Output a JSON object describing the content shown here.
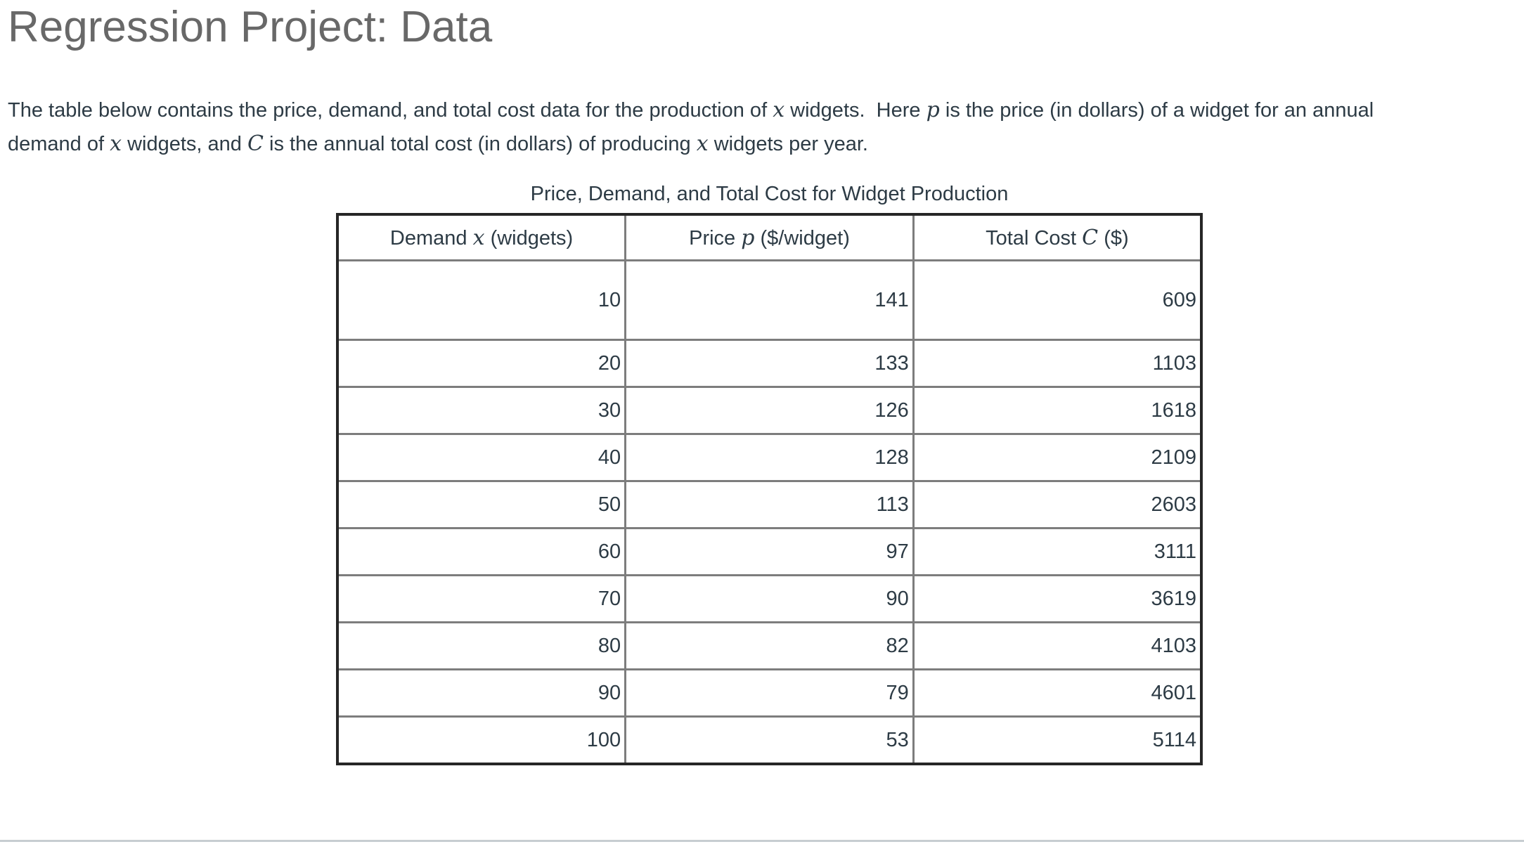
{
  "page": {
    "title": "Regression Project: Data"
  },
  "paragraph": {
    "lines": [
      [
        {
          "t": "The table below contains the price, demand, and total cost data for the production of ",
          "m": false
        },
        {
          "t": "x",
          "m": true
        },
        {
          "t": " widgets.  Here ",
          "m": false
        },
        {
          "t": "p",
          "m": true
        },
        {
          "t": " is the price (in dollars) of a widget for an annual",
          "m": false
        }
      ],
      [
        {
          "t": "demand of ",
          "m": false
        },
        {
          "t": "x",
          "m": true
        },
        {
          "t": " widgets, and ",
          "m": false
        },
        {
          "t": "C",
          "m": true
        },
        {
          "t": " is the annual total cost (in dollars) of producing ",
          "m": false
        },
        {
          "t": "x",
          "m": true
        },
        {
          "t": " widgets per year.",
          "m": false
        }
      ]
    ]
  },
  "table": {
    "caption": "Price, Demand, and Total Cost for Widget Production",
    "headers": [
      {
        "prefix": "Demand ",
        "var": "x",
        "suffix": " (widgets)"
      },
      {
        "prefix": "Price ",
        "var": "p",
        "suffix": " ($/widget)"
      },
      {
        "prefix": "Total Cost ",
        "var": "C",
        "suffix": " ($)"
      }
    ],
    "rows": [
      [
        "10",
        "141",
        "609"
      ],
      [
        "20",
        "133",
        "1103"
      ],
      [
        "30",
        "126",
        "1618"
      ],
      [
        "40",
        "128",
        "2109"
      ],
      [
        "50",
        "113",
        "2603"
      ],
      [
        "60",
        "97",
        "3111"
      ],
      [
        "70",
        "90",
        "3619"
      ],
      [
        "80",
        "82",
        "4103"
      ],
      [
        "90",
        "79",
        "4601"
      ],
      [
        "100",
        "53",
        "5114"
      ]
    ]
  },
  "chart_data": {
    "type": "table",
    "title": "Price, Demand, and Total Cost for Widget Production",
    "columns": [
      "Demand x (widgets)",
      "Price p ($/widget)",
      "Total Cost C ($)"
    ],
    "demand_x_widgets": [
      10,
      20,
      30,
      40,
      50,
      60,
      70,
      80,
      90,
      100
    ],
    "price_p_dollars_per_widget": [
      141,
      133,
      126,
      128,
      113,
      97,
      90,
      82,
      79,
      53
    ],
    "total_cost_C_dollars": [
      609,
      1103,
      1618,
      2109,
      2603,
      3111,
      3619,
      4103,
      4601,
      5114
    ]
  },
  "colors": {
    "body_text": "#2d3b45",
    "title_text": "#686868",
    "table_outer_border": "#262626",
    "table_inner_border": "#7d7d7d",
    "bottom_divider": "#c7cdd1"
  }
}
